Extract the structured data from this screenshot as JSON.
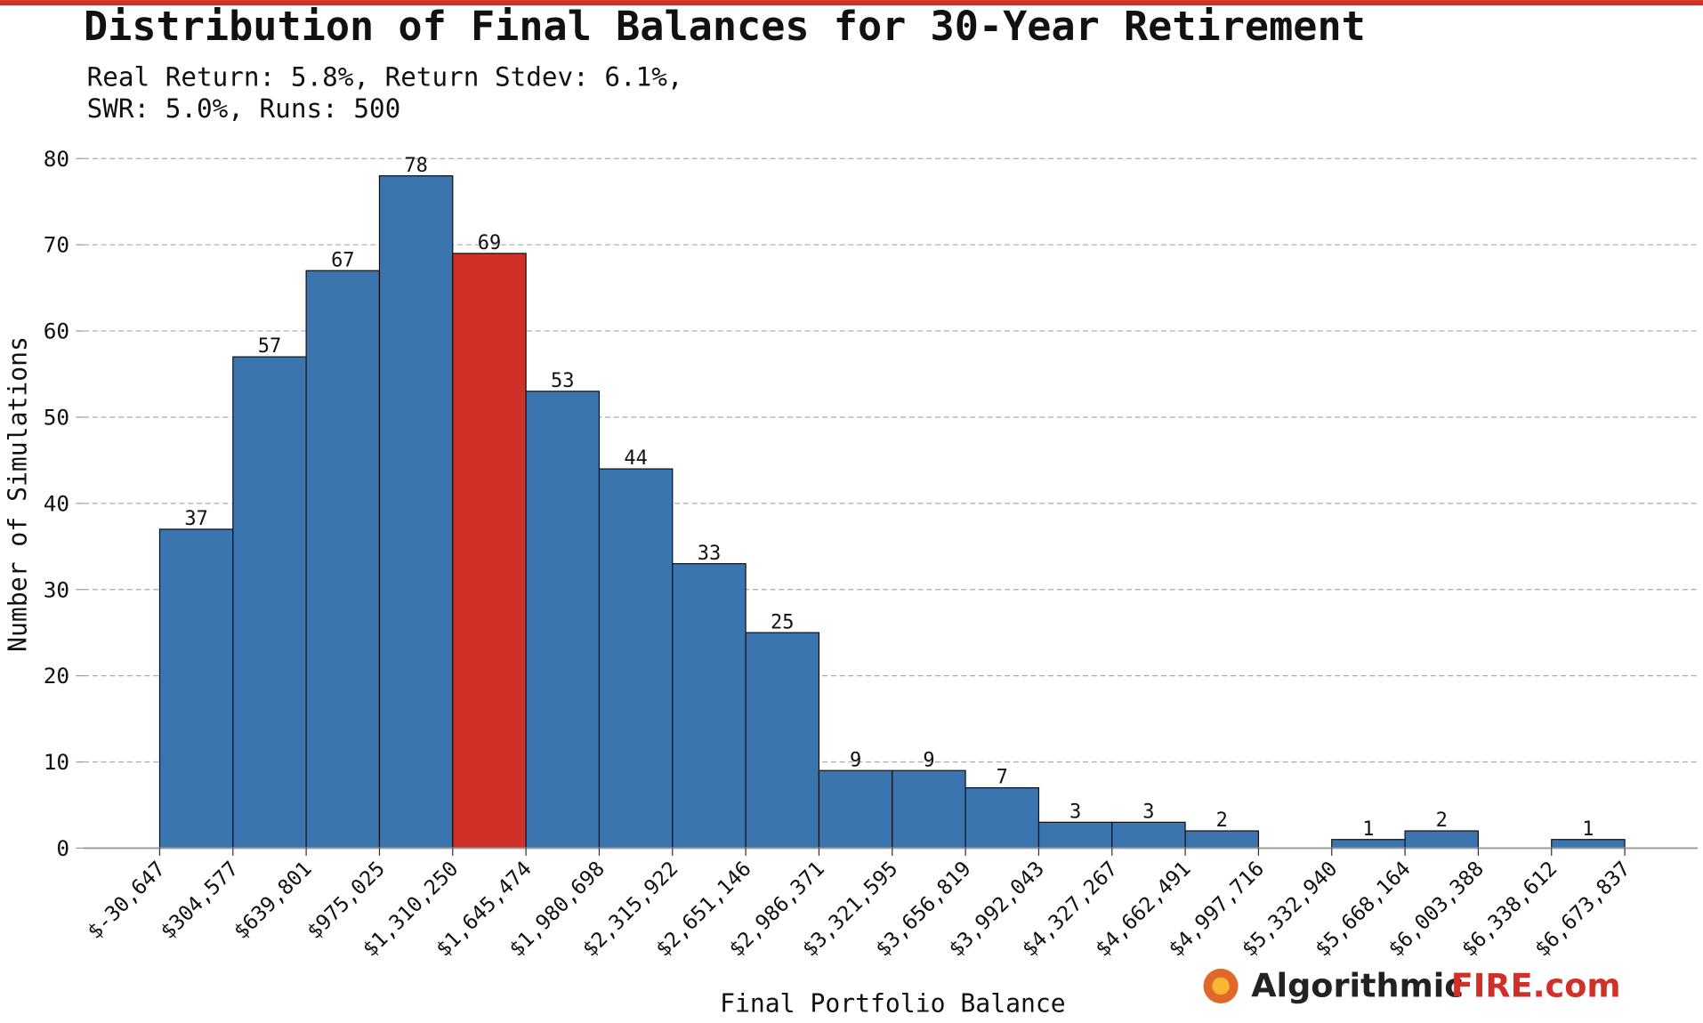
{
  "chart_data": {
    "type": "histogram",
    "title": "Distribution of Final Balances for 30-Year Retirement",
    "subtitle": [
      "Real Return: 5.8%, Return Stdev: 6.1%,",
      "SWR: 5.0%, Runs: 500"
    ],
    "x_label": "Final Portfolio Balance",
    "y_label": "Number of Simulations",
    "bins": [
      -30647,
      304577,
      639801,
      975025,
      1310250,
      1645474,
      1980698,
      2315922,
      2651146,
      2986371,
      3321595,
      3656819,
      3992043,
      4327267,
      4662491,
      4997716,
      5332940,
      5668164,
      6003388,
      6338612,
      6673837
    ],
    "values": [
      37,
      57,
      67,
      78,
      69,
      53,
      44,
      33,
      25,
      9,
      9,
      7,
      3,
      3,
      2,
      0,
      1,
      2,
      0,
      1
    ],
    "colors": [
      "#3b75af",
      "#3b75af",
      "#3b75af",
      "#3b75af",
      "#d03027",
      "#3b75af",
      "#3b75af",
      "#3b75af",
      "#3b75af",
      "#3b75af",
      "#3b75af",
      "#3b75af",
      "#3b75af",
      "#3b75af",
      "#3b75af",
      "#3b75af",
      "#3b75af",
      "#3b75af",
      "#3b75af",
      "#3b75af"
    ],
    "xlim": [
      -378700,
      7007000
    ],
    "xticks": [
      {
        "value": -30647,
        "label": "$-30,647"
      },
      {
        "value": 304577,
        "label": "$304,577"
      },
      {
        "value": 639801,
        "label": "$639,801"
      },
      {
        "value": 975025,
        "label": "$975,025"
      },
      {
        "value": 1310250,
        "label": "$1,310,250"
      },
      {
        "value": 1645474,
        "label": "$1,645,474"
      },
      {
        "value": 1980698,
        "label": "$1,980,698"
      },
      {
        "value": 2315922,
        "label": "$2,315,922"
      },
      {
        "value": 2651146,
        "label": "$2,651,146"
      },
      {
        "value": 2986371,
        "label": "$2,986,371"
      },
      {
        "value": 3321595,
        "label": "$3,321,595"
      },
      {
        "value": 3656819,
        "label": "$3,656,819"
      },
      {
        "value": 3992043,
        "label": "$3,992,043"
      },
      {
        "value": 4327267,
        "label": "$4,327,267"
      },
      {
        "value": 4662491,
        "label": "$4,662,491"
      },
      {
        "value": 4997716,
        "label": "$4,997,716"
      },
      {
        "value": 5332940,
        "label": "$5,332,940"
      },
      {
        "value": 5668164,
        "label": "$5,668,164"
      },
      {
        "value": 6003388,
        "label": "$6,003,388"
      },
      {
        "value": 6338612,
        "label": "$6,338,612"
      },
      {
        "value": 6673837,
        "label": "$6,673,837"
      }
    ],
    "ylim": [
      0,
      80
    ],
    "yticks": [
      0,
      10,
      20,
      30,
      40,
      50,
      60,
      70,
      80
    ],
    "grid": true,
    "brand": [
      "Algorithmic",
      "FIRE.com"
    ]
  }
}
